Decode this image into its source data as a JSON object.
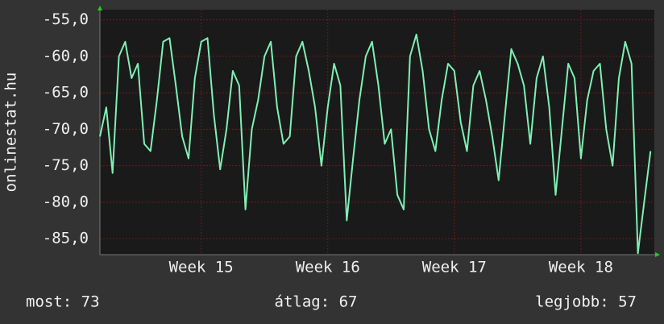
{
  "chart_data": {
    "type": "line",
    "y_label": "onlinestat.hu",
    "x": [
      14.2,
      14.25,
      14.3,
      14.35,
      14.4,
      14.45,
      14.5,
      14.55,
      14.6,
      14.65,
      14.7,
      14.75,
      14.8,
      14.85,
      14.9,
      14.95,
      15.0,
      15.05,
      15.1,
      15.15,
      15.2,
      15.25,
      15.3,
      15.35,
      15.4,
      15.45,
      15.5,
      15.55,
      15.6,
      15.65,
      15.7,
      15.75,
      15.8,
      15.85,
      15.9,
      15.95,
      16.0,
      16.05,
      16.1,
      16.15,
      16.2,
      16.25,
      16.3,
      16.35,
      16.4,
      16.45,
      16.5,
      16.55,
      16.6,
      16.65,
      16.7,
      16.75,
      16.8,
      16.85,
      16.9,
      16.95,
      17.0,
      17.05,
      17.1,
      17.15,
      17.2,
      17.25,
      17.3,
      17.35,
      17.4,
      17.45,
      17.5,
      17.55,
      17.6,
      17.65,
      17.7,
      17.75,
      17.8,
      17.85,
      17.9,
      17.95,
      18.0,
      18.05,
      18.1,
      18.15,
      18.2,
      18.25,
      18.3,
      18.35,
      18.4,
      18.45,
      18.5,
      18.55
    ],
    "values": [
      -71,
      -67,
      -76,
      -60,
      -58,
      -63,
      -61,
      -72,
      -73,
      -66,
      -58,
      -57.5,
      -64,
      -71,
      -74,
      -63,
      -58,
      -57.5,
      -68,
      -75.5,
      -70,
      -62,
      -64,
      -81,
      -70,
      -66,
      -60,
      -58,
      -67,
      -72,
      -71,
      -60,
      -58,
      -62,
      -67,
      -75,
      -67,
      -61,
      -64,
      -82.5,
      -74,
      -66,
      -60,
      -58,
      -64,
      -72,
      -70,
      -79,
      -81,
      -60,
      -57,
      -62,
      -70,
      -73,
      -66,
      -61,
      -62,
      -69,
      -73,
      -64,
      -62,
      -66,
      -71,
      -77,
      -68,
      -59,
      -61,
      -64,
      -72,
      -63,
      -60,
      -67,
      -79,
      -70,
      -61,
      -63,
      -74,
      -66,
      -62,
      -61,
      -70,
      -75,
      -63,
      -58,
      -61,
      -87,
      -80,
      -73
    ],
    "color": "#7ff0b4",
    "xlim": [
      14.2,
      18.58
    ],
    "xticks": [
      {
        "value": 15,
        "label": "Week 15"
      },
      {
        "value": 16,
        "label": "Week 16"
      },
      {
        "value": 17,
        "label": "Week 17"
      },
      {
        "value": 18,
        "label": "Week 18"
      }
    ],
    "ylim": [
      -87.2,
      -53.6
    ],
    "yticks": [
      {
        "value": -55,
        "label": "-55,0"
      },
      {
        "value": -60,
        "label": "-60,0"
      },
      {
        "value": -65,
        "label": "-65,0"
      },
      {
        "value": -70,
        "label": "-70,0"
      },
      {
        "value": -75,
        "label": "-75,0"
      },
      {
        "value": -80,
        "label": "-80,0"
      },
      {
        "value": -85,
        "label": "-85,0"
      }
    ],
    "grid": true,
    "footer": {
      "now": "most: 73",
      "average": "átlag: 67",
      "best": "legjobb: 57"
    }
  }
}
